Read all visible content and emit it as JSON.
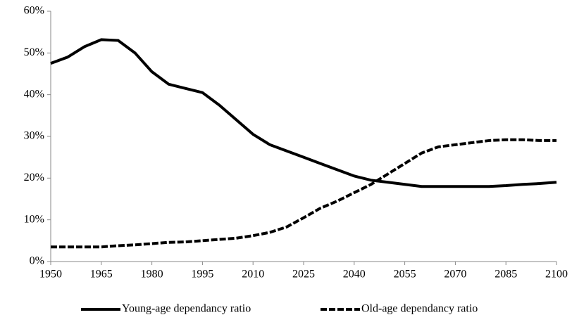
{
  "chart_data": {
    "type": "line",
    "x": [
      1950,
      1955,
      1960,
      1965,
      1970,
      1975,
      1980,
      1985,
      1990,
      1995,
      2000,
      2005,
      2010,
      2015,
      2020,
      2025,
      2030,
      2035,
      2040,
      2045,
      2050,
      2055,
      2060,
      2065,
      2070,
      2075,
      2080,
      2085,
      2090,
      2095,
      2100
    ],
    "series": [
      {
        "name": "Young-age dependancy ratio",
        "color": "#000000",
        "dash": "solid",
        "values": [
          47.5,
          49,
          51.5,
          53.2,
          53,
          50,
          45.5,
          42.5,
          41.5,
          40.5,
          37.5,
          34,
          30.5,
          28,
          26.5,
          25,
          23.5,
          22,
          20.5,
          19.5,
          19,
          18.5,
          18,
          18,
          18,
          18,
          18,
          18.2,
          18.5,
          18.7,
          19
        ]
      },
      {
        "name": "Old-age dependancy ratio",
        "color": "#000000",
        "dash": "dashed",
        "values": [
          3.5,
          3.5,
          3.5,
          3.5,
          3.8,
          4,
          4.3,
          4.6,
          4.7,
          5,
          5.3,
          5.6,
          6.2,
          7,
          8.3,
          10.5,
          12.8,
          14.5,
          16.5,
          18.5,
          21,
          23.5,
          26,
          27.5,
          28,
          28.5,
          29,
          29.2,
          29.2,
          29,
          29
        ]
      }
    ],
    "xlim": [
      1950,
      2100
    ],
    "xticks": [
      1950,
      1965,
      1980,
      1995,
      2010,
      2025,
      2040,
      2055,
      2070,
      2085,
      2100
    ],
    "ylim": [
      0,
      60
    ],
    "yticks": [
      {
        "value": 0,
        "label": "0%"
      },
      {
        "value": 10,
        "label": "10%"
      },
      {
        "value": 20,
        "label": "20%"
      },
      {
        "value": 30,
        "label": "30%"
      },
      {
        "value": 40,
        "label": "40%"
      },
      {
        "value": 50,
        "label": "50%"
      },
      {
        "value": 60,
        "label": "60%"
      }
    ],
    "legend": "bottom"
  }
}
